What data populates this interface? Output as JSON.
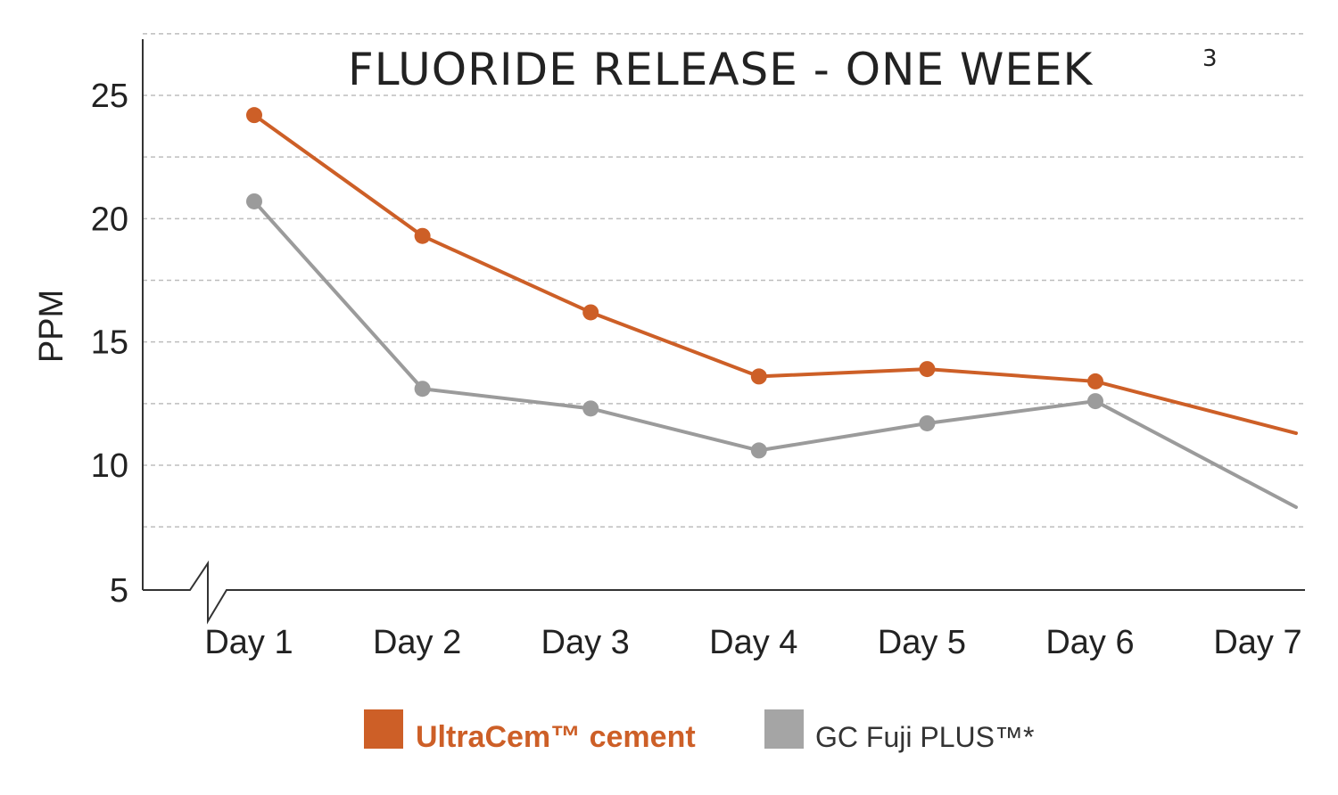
{
  "chart_data": {
    "type": "line",
    "title": "FLUORIDE RELEASE - ONE WEEK",
    "title_superscript": "3",
    "ylabel": "PPM",
    "xlabel": "",
    "categories": [
      "Day 1",
      "Day 2",
      "Day 3",
      "Day 4",
      "Day 5",
      "Day 6",
      "Day 7"
    ],
    "y_ticks": [
      "5",
      "10",
      "15",
      "20",
      "25"
    ],
    "ylim": [
      5,
      27.5
    ],
    "y_break": true,
    "grid": "horizontal-dashed",
    "legend_position": "bottom",
    "series": [
      {
        "name": "UltraCem™ cement",
        "color": "#cd5f27",
        "values": [
          24.2,
          19.3,
          16.2,
          13.6,
          13.9,
          13.4,
          11.3
        ]
      },
      {
        "name": "GC Fuji PLUS™*",
        "color": "#9b9b9b",
        "values": [
          20.7,
          13.1,
          12.3,
          10.6,
          11.7,
          12.6,
          8.3
        ]
      }
    ]
  }
}
